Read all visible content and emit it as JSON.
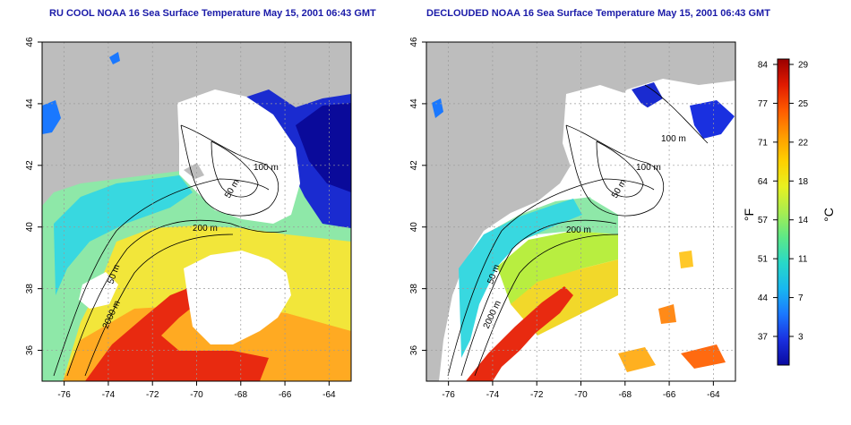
{
  "panels": [
    {
      "title": "RU COOL NOAA 16 Sea Surface Temperature May 15, 2001 06:43 GMT",
      "contour_labels": [
        "100 m",
        "50 m",
        "200 m",
        "50 m",
        "2000 m"
      ]
    },
    {
      "title": "DECLOUDED NOAA 16 Sea Surface Temperature May 15, 2001 06:43 GMT",
      "contour_labels": [
        "100 m",
        "100 m",
        "50 m",
        "200 m",
        "50 m",
        "2000 m"
      ]
    }
  ],
  "axes": {
    "lon_ticks": [
      "-76",
      "-74",
      "-72",
      "-70",
      "-68",
      "-66",
      "-64"
    ],
    "lat_ticks": [
      "36",
      "38",
      "40",
      "42",
      "44",
      "46"
    ],
    "lon_range": [
      -77,
      -63
    ],
    "lat_range": [
      35,
      46
    ]
  },
  "colorbar": {
    "fahrenheit_label": "°F",
    "celsius_label": "°C",
    "fahrenheit_ticks": [
      "84",
      "77",
      "71",
      "64",
      "57",
      "51",
      "44",
      "37"
    ],
    "celsius_ticks": [
      "29",
      "25",
      "22",
      "18",
      "14",
      "11",
      "7",
      "3"
    ],
    "colors": [
      "#9a0000",
      "#e01a00",
      "#ff5a00",
      "#ff9a00",
      "#ffd000",
      "#e8f020",
      "#a8ee50",
      "#5ce888",
      "#28d8c8",
      "#18b8f0",
      "#1a78ff",
      "#1a30e0",
      "#0a0aa0"
    ]
  },
  "colors": {
    "land": "#bdbdbd",
    "cloud": "#ffffff",
    "title": "#1a1aa8"
  }
}
